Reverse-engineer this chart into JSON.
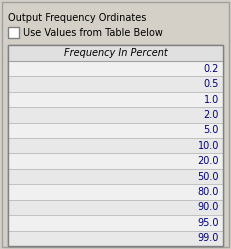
{
  "title": "Output Frequency Ordinates",
  "checkbox_label": "Use Values from Table Below",
  "table_header": "Frequency In Percent",
  "table_values": [
    "0.2",
    "0.5",
    "1.0",
    "2.0",
    "5.0",
    "10.0",
    "20.0",
    "50.0",
    "80.0",
    "90.0",
    "95.0",
    "99.0"
  ],
  "bg_color": "#d4d0c8",
  "table_bg": "#e8e8e8",
  "header_bg": "#e0e0e0",
  "row_color_odd": "#e8e8e8",
  "row_color_even": "#f0f0f0",
  "border_color": "#808080",
  "text_color": "#000080",
  "title_color": "#000000",
  "fig_width": 2.31,
  "fig_height": 2.49,
  "dpi": 100,
  "title_fontsize": 7,
  "header_fontsize": 7,
  "row_fontsize": 7
}
